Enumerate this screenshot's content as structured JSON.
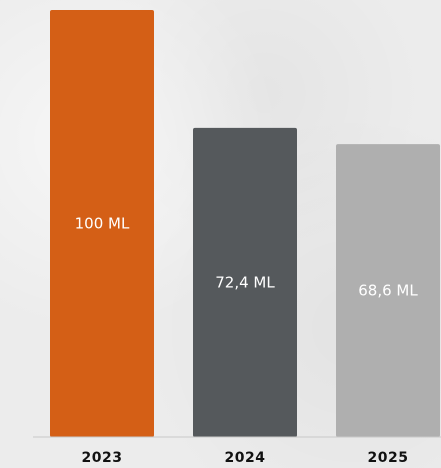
{
  "chart_data": {
    "type": "bar",
    "categories": [
      "2023",
      "2024",
      "2025"
    ],
    "values": [
      100,
      72.4,
      68.6
    ],
    "value_labels": [
      "100 ML",
      "72,4 ML",
      "68,6 ML"
    ],
    "colors": [
      "#d45f16",
      "#55595c",
      "#afafaf"
    ],
    "title": "",
    "xlabel": "",
    "ylabel": "",
    "ylim": [
      0,
      100
    ],
    "grid": false,
    "legend": "none"
  }
}
